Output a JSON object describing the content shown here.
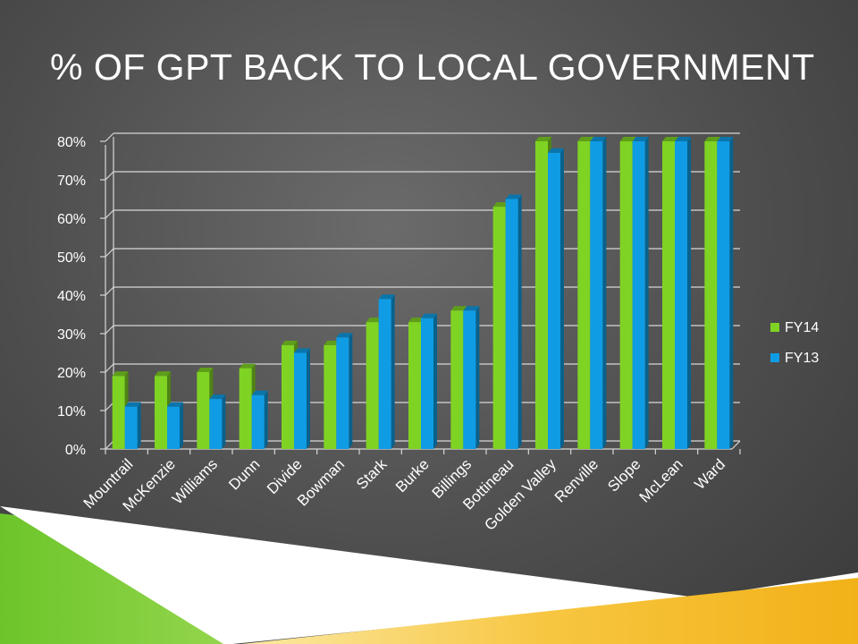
{
  "slide": {
    "title": "% OF GPT BACK TO LOCAL GOVERNMENT"
  },
  "colors": {
    "fy14": "#7fd323",
    "fy13": "#0f9ce4",
    "accent_green": "#8fd43a",
    "accent_yellow": "#f5b81e"
  },
  "chart_data": {
    "type": "bar",
    "title": "",
    "xlabel": "",
    "ylabel": "",
    "categories": [
      "Mountrail",
      "McKenzie",
      "Williams",
      "Dunn",
      "Divide",
      "Bowman",
      "Stark",
      "Burke",
      "Billings",
      "Bottineau",
      "Golden Valley",
      "Renville",
      "Slope",
      "McLean",
      "Ward"
    ],
    "series": [
      {
        "name": "FY14",
        "values": [
          19,
          19,
          20,
          21,
          27,
          27,
          33,
          33,
          36,
          63,
          80,
          80,
          80,
          80,
          80
        ]
      },
      {
        "name": "FY13",
        "values": [
          11,
          11,
          13,
          14,
          25,
          29,
          39,
          34,
          36,
          65,
          77,
          80,
          80,
          80,
          80
        ]
      }
    ],
    "ylim": [
      0,
      80
    ],
    "yticks": [
      "0%",
      "10%",
      "20%",
      "30%",
      "40%",
      "50%",
      "60%",
      "70%",
      "80%"
    ],
    "grid": true,
    "legend_position": "right"
  }
}
